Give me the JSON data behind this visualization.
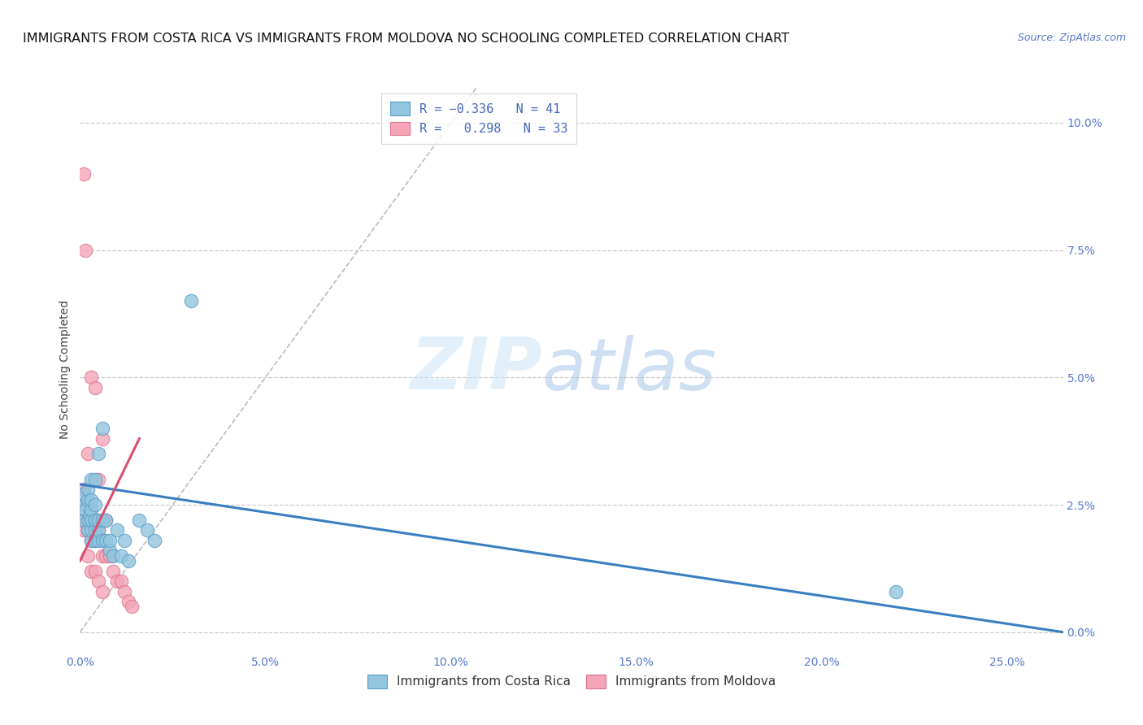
{
  "title": "IMMIGRANTS FROM COSTA RICA VS IMMIGRANTS FROM MOLDOVA NO SCHOOLING COMPLETED CORRELATION CHART",
  "source": "Source: ZipAtlas.com",
  "xlabel_ticks": [
    "0.0%",
    "5.0%",
    "10.0%",
    "15.0%",
    "20.0%",
    "25.0%"
  ],
  "xlabel_vals": [
    0.0,
    0.05,
    0.1,
    0.15,
    0.2,
    0.25
  ],
  "ylabel": "No Schooling Completed",
  "ylabel_ticks": [
    "0.0%",
    "2.5%",
    "5.0%",
    "7.5%",
    "10.0%"
  ],
  "ylabel_vals": [
    0.0,
    0.025,
    0.05,
    0.075,
    0.1
  ],
  "xmin": 0.0,
  "xmax": 0.265,
  "ymin": -0.004,
  "ymax": 0.107,
  "legend_label_blue": "Immigrants from Costa Rica",
  "legend_label_pink": "Immigrants from Moldova",
  "color_blue": "#92c5de",
  "color_pink": "#f4a6b8",
  "color_blue_edge": "#5a9dc8",
  "color_pink_edge": "#e07090",
  "color_blue_line": "#3a7fc1",
  "color_pink_line": "#d94f6e",
  "color_diag": "#bbbbbb",
  "background": "#ffffff",
  "watermark_zip": "ZIP",
  "watermark_atlas": "atlas",
  "title_fontsize": 11.5,
  "tick_fontsize": 10,
  "tick_color": "#5577cc",
  "blue_scatter_x": [
    0.001,
    0.001,
    0.001,
    0.0015,
    0.002,
    0.002,
    0.002,
    0.002,
    0.0025,
    0.003,
    0.003,
    0.003,
    0.003,
    0.003,
    0.003,
    0.004,
    0.004,
    0.004,
    0.004,
    0.004,
    0.005,
    0.005,
    0.005,
    0.005,
    0.006,
    0.006,
    0.006,
    0.007,
    0.007,
    0.008,
    0.008,
    0.009,
    0.01,
    0.011,
    0.012,
    0.013,
    0.016,
    0.018,
    0.02,
    0.03,
    0.22
  ],
  "blue_scatter_y": [
    0.022,
    0.025,
    0.027,
    0.024,
    0.02,
    0.022,
    0.026,
    0.028,
    0.023,
    0.018,
    0.02,
    0.022,
    0.024,
    0.026,
    0.03,
    0.018,
    0.02,
    0.022,
    0.025,
    0.03,
    0.018,
    0.02,
    0.022,
    0.035,
    0.018,
    0.022,
    0.04,
    0.018,
    0.022,
    0.016,
    0.018,
    0.015,
    0.02,
    0.015,
    0.018,
    0.014,
    0.022,
    0.02,
    0.018,
    0.065,
    0.008
  ],
  "pink_scatter_x": [
    0.001,
    0.001,
    0.001,
    0.001,
    0.002,
    0.002,
    0.002,
    0.002,
    0.003,
    0.003,
    0.003,
    0.004,
    0.004,
    0.004,
    0.005,
    0.005,
    0.006,
    0.006,
    0.007,
    0.007,
    0.008,
    0.009,
    0.01,
    0.011,
    0.012,
    0.013,
    0.014,
    0.001,
    0.0015,
    0.003,
    0.004,
    0.005,
    0.006
  ],
  "pink_scatter_y": [
    0.02,
    0.022,
    0.025,
    0.028,
    0.015,
    0.02,
    0.025,
    0.035,
    0.018,
    0.022,
    0.05,
    0.018,
    0.022,
    0.048,
    0.02,
    0.03,
    0.015,
    0.038,
    0.015,
    0.022,
    0.015,
    0.012,
    0.01,
    0.01,
    0.008,
    0.006,
    0.005,
    0.09,
    0.075,
    0.012,
    0.012,
    0.01,
    0.008
  ],
  "blue_line_x": [
    0.0,
    0.265
  ],
  "blue_line_y": [
    0.029,
    0.0
  ],
  "pink_line_x": [
    0.0,
    0.016
  ],
  "pink_line_y": [
    0.014,
    0.038
  ]
}
